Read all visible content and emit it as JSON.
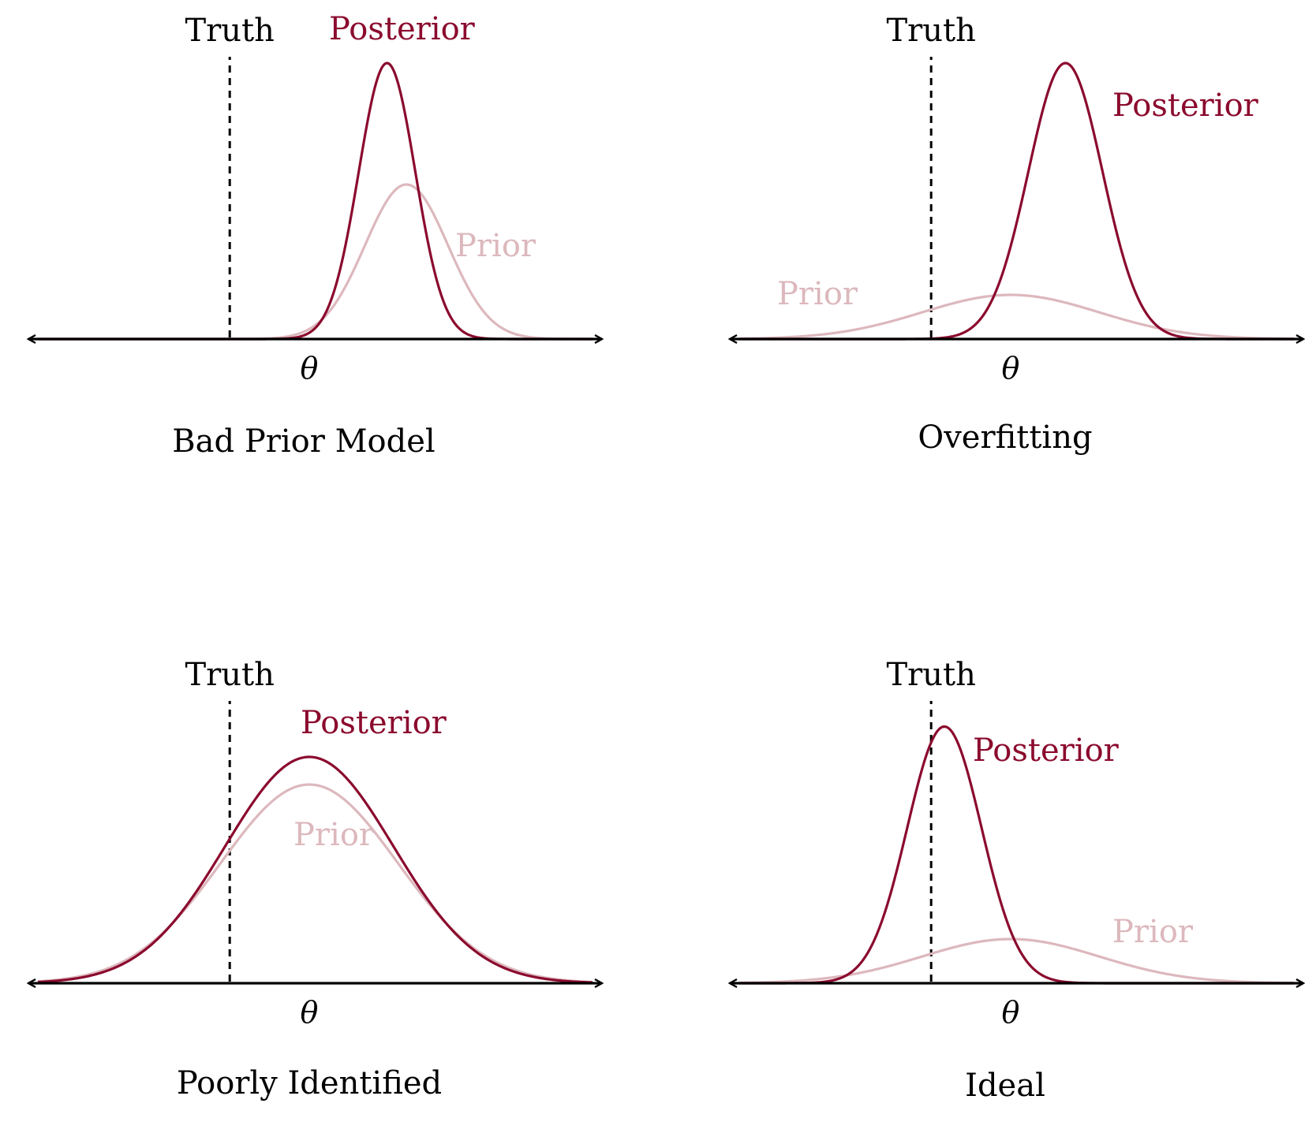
{
  "colors": {
    "posterior": "#8b0a2e",
    "prior": "#dcb8bd",
    "axis": "#000000",
    "truth": "#000000",
    "background": "#ffffff"
  },
  "panels": [
    {
      "title": "Bad Prior Model",
      "truth_label": "Truth",
      "axis_label": "θ",
      "posterior_label": "Posterior",
      "prior_label": "Prior",
      "truth_value": -0.9,
      "prior": {
        "mean": 1.1,
        "sd": 0.47,
        "peak": 0.56
      },
      "posterior": {
        "mean": 0.88,
        "sd": 0.32,
        "peak": 1.0
      }
    },
    {
      "title": "Overfitting",
      "truth_label": "Truth",
      "axis_label": "θ",
      "posterior_label": "Posterior",
      "prior_label": "Prior",
      "truth_value": -0.9,
      "prior": {
        "mean": 0.0,
        "sd": 1.0,
        "peak": 0.16
      },
      "posterior": {
        "mean": 0.62,
        "sd": 0.42,
        "peak": 1.0
      }
    },
    {
      "title": "Poorly Identified",
      "truth_label": "Truth",
      "axis_label": "θ",
      "posterior_label": "Posterior",
      "prior_label": "Prior",
      "truth_value": -0.9,
      "prior": {
        "mean": 0.0,
        "sd": 1.0,
        "peak": 0.72
      },
      "posterior": {
        "mean": 0.0,
        "sd": 0.95,
        "peak": 0.82
      }
    },
    {
      "title": "Ideal",
      "truth_label": "Truth",
      "axis_label": "θ",
      "posterior_label": "Posterior",
      "prior_label": "Prior",
      "truth_value": -0.9,
      "prior": {
        "mean": 0.0,
        "sd": 1.0,
        "peak": 0.16
      },
      "posterior": {
        "mean": -0.75,
        "sd": 0.42,
        "peak": 0.93
      }
    }
  ]
}
